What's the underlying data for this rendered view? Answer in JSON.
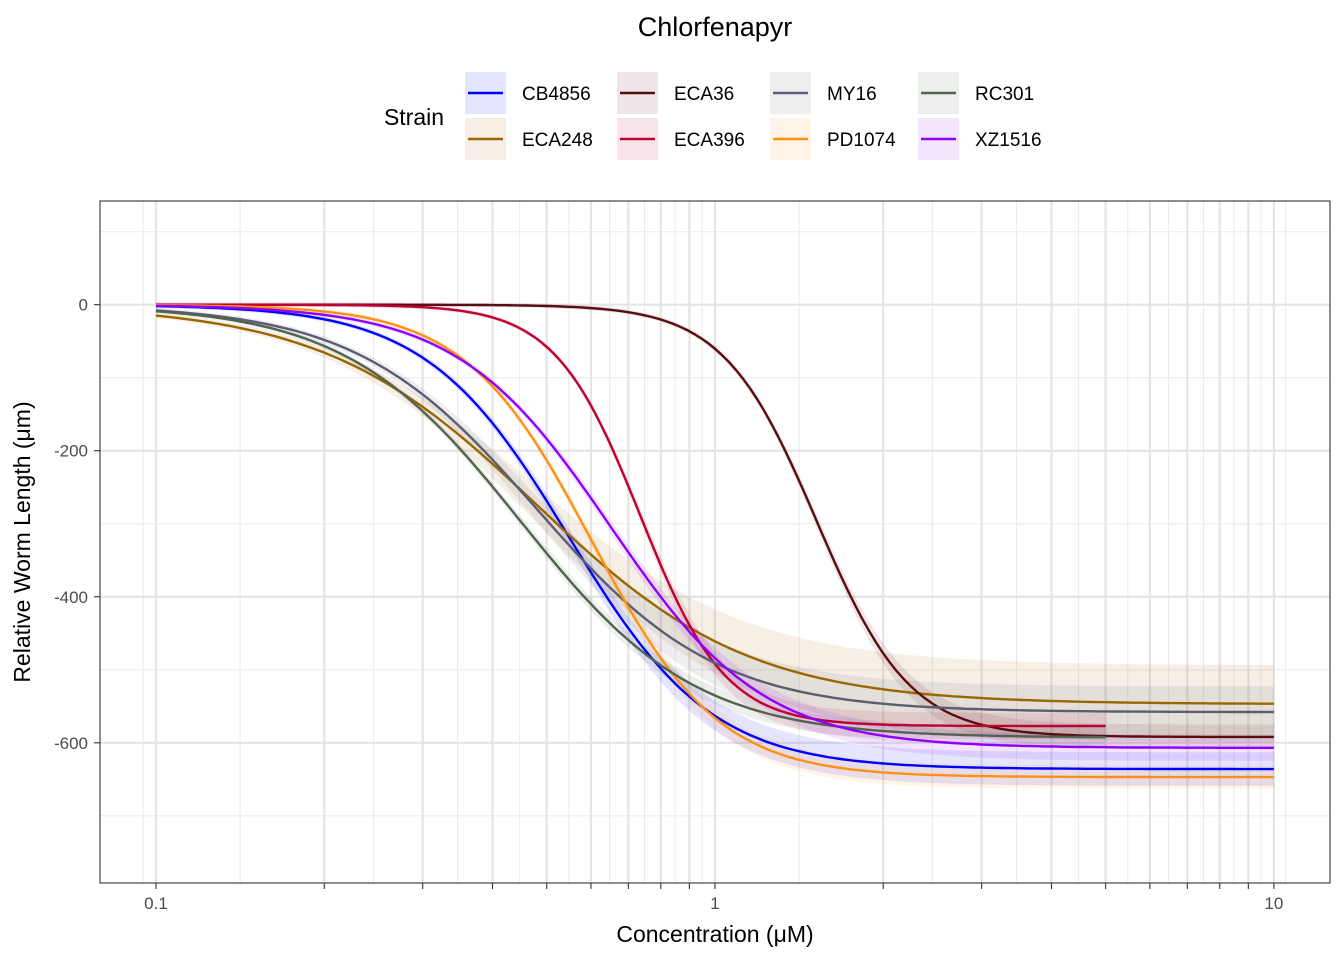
{
  "chart_data": {
    "type": "line",
    "title": "Chlorfenapyr",
    "xlabel": "Concentration (μM)",
    "ylabel": "Relative Worm Length (μm)",
    "x_scale": "log10",
    "xlim": [
      0.0794,
      12.6
    ],
    "ylim": [
      -792,
      142
    ],
    "x_ticks": [
      0.1,
      0.2,
      0.3,
      0.4,
      0.5,
      0.6,
      0.7,
      0.8,
      0.9,
      1,
      2,
      3,
      4,
      5,
      6,
      7,
      8,
      9,
      10
    ],
    "x_tick_labels": [
      {
        "value": 0.1,
        "label": "0.1"
      },
      {
        "value": 1,
        "label": "1"
      },
      {
        "value": 10,
        "label": "10"
      }
    ],
    "y_ticks": [
      {
        "value": 0,
        "label": "0"
      },
      {
        "value": -200,
        "label": "-200"
      },
      {
        "value": -400,
        "label": "-400"
      },
      {
        "value": -600,
        "label": "-600"
      }
    ],
    "y_minor_ticks": [
      100,
      -100,
      -300,
      -500,
      -700
    ],
    "grid": true,
    "legend": {
      "title": "Strain",
      "placement": "top",
      "columns": 4
    },
    "model": "y = bottom / (1 + (EC50 / x)^hill)",
    "series": [
      {
        "name": "CB4856",
        "color": "#0000FF",
        "bottom": -636,
        "ec50": 0.548,
        "hill": 3.4,
        "ci": 20,
        "x_range": [
          0.1,
          10
        ],
        "points": [
          [
            0.1,
            -2
          ],
          [
            0.3,
            -73
          ],
          [
            0.528,
            -300
          ],
          [
            1,
            -563
          ],
          [
            2,
            -628
          ],
          [
            10,
            -636
          ]
        ]
      },
      {
        "name": "ECA248",
        "color": "#996600",
        "bottom": -547,
        "ec50": 0.479,
        "hill": 2.28,
        "ci": 50,
        "x_range": [
          0.1,
          10
        ],
        "points": [
          [
            0.1,
            -15
          ],
          [
            0.522,
            -300
          ],
          [
            1,
            -461
          ],
          [
            2,
            -527
          ],
          [
            10,
            -547
          ]
        ]
      },
      {
        "name": "ECA36",
        "color": "#5A0C13",
        "bottom": -592,
        "ec50": 1.52,
        "hill": 5.2,
        "ci": 14,
        "x_range": [
          0.1,
          10
        ],
        "points": [
          [
            0.1,
            0
          ],
          [
            1,
            -60
          ],
          [
            1.51,
            -296
          ],
          [
            2,
            -475
          ],
          [
            10,
            -592
          ]
        ]
      },
      {
        "name": "ECA396",
        "color": "#BE0032",
        "bottom": -577,
        "ec50": 0.735,
        "hill": 5.7,
        "ci": 15,
        "x_range": [
          0.1,
          5
        ],
        "points": [
          [
            0.1,
            0
          ],
          [
            0.448,
            -27
          ],
          [
            0.743,
            -300
          ],
          [
            1,
            -492
          ],
          [
            2,
            -575
          ],
          [
            5,
            -577
          ]
        ]
      },
      {
        "name": "MY16",
        "color": "#5B5D72",
        "bottom": -558,
        "ec50": 0.479,
        "hill": 2.7,
        "ci": 32,
        "x_range": [
          0.1,
          10
        ],
        "points": [
          [
            0.1,
            -8
          ],
          [
            0.3,
            -126
          ],
          [
            0.507,
            -300
          ],
          [
            1,
            -491
          ],
          [
            2,
            -546
          ],
          [
            10,
            -558
          ]
        ]
      },
      {
        "name": "PD1074",
        "color": "#FF9010",
        "bottom": -647,
        "ec50": 0.602,
        "hill": 3.83,
        "ci": 13,
        "x_range": [
          0.1,
          10
        ],
        "points": [
          [
            0.1,
            -1
          ],
          [
            0.3,
            -42
          ],
          [
            0.581,
            -300
          ],
          [
            1,
            -566
          ],
          [
            2,
            -641
          ],
          [
            10,
            -647
          ]
        ]
      },
      {
        "name": "RC301",
        "color": "#52634F",
        "bottom": -593,
        "ec50": 0.449,
        "hill": 2.78,
        "ci": 10,
        "x_range": [
          0.1,
          5
        ],
        "points": [
          [
            0.1,
            -9
          ],
          [
            0.452,
            -300
          ],
          [
            1,
            -535
          ],
          [
            2,
            -584
          ],
          [
            5,
            -593
          ]
        ]
      },
      {
        "name": "XZ1516",
        "color": "#9000FF",
        "bottom": -607,
        "ec50": 0.65,
        "hill": 3.18,
        "ci": 15,
        "x_range": [
          0.1,
          10
        ],
        "points": [
          [
            0.1,
            -1
          ],
          [
            0.3,
            -48
          ],
          [
            0.645,
            -300
          ],
          [
            1,
            -484
          ],
          [
            2,
            -590
          ],
          [
            10,
            -607
          ]
        ]
      }
    ]
  }
}
